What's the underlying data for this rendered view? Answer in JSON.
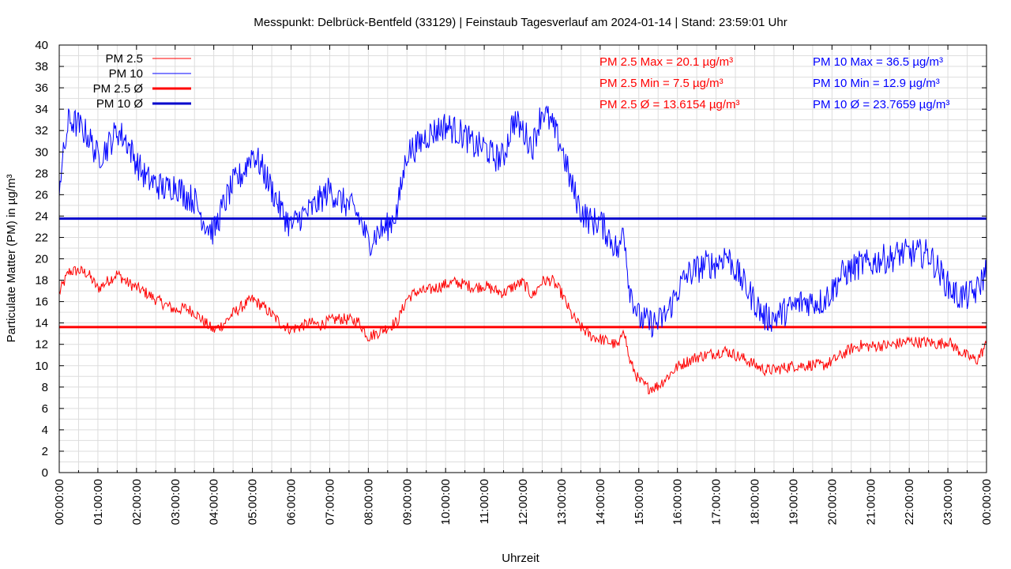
{
  "chart_data": {
    "type": "line",
    "title": "Messpunkt: Delbrück-Bentfeld (33129) | Feinstaub Tagesverlauf am 2024-01-14 | Stand: 23:59:01 Uhr",
    "xlabel": "Uhrzeit",
    "ylabel": "Particulate Matter (PM) in µg/m³",
    "ylim": [
      0,
      40
    ],
    "y_ticks": [
      "0",
      "2",
      "4",
      "6",
      "8",
      "10",
      "12",
      "14",
      "16",
      "18",
      "20",
      "22",
      "24",
      "26",
      "28",
      "30",
      "32",
      "34",
      "36",
      "38",
      "40"
    ],
    "x_ticks": [
      "00:00:00",
      "01:00:00",
      "02:00:00",
      "03:00:00",
      "04:00:00",
      "05:00:00",
      "06:00:00",
      "07:00:00",
      "08:00:00",
      "09:00:00",
      "10:00:00",
      "11:00:00",
      "12:00:00",
      "13:00:00",
      "14:00:00",
      "15:00:00",
      "16:00:00",
      "17:00:00",
      "18:00:00",
      "19:00:00",
      "20:00:00",
      "21:00:00",
      "22:00:00",
      "23:00:00",
      "00:00:00"
    ],
    "grid": true,
    "legend_position": "top-left",
    "series": [
      {
        "name": "PM 2.5",
        "color": "#ff0000",
        "x_hours": [
          0,
          0.25,
          0.5,
          0.75,
          1,
          1.25,
          1.5,
          1.75,
          2,
          2.25,
          2.5,
          2.75,
          3,
          3.25,
          3.5,
          3.75,
          4,
          4.25,
          4.5,
          4.75,
          5,
          5.25,
          5.5,
          5.75,
          6,
          6.25,
          6.5,
          6.75,
          7,
          7.25,
          7.5,
          7.75,
          8,
          8.25,
          8.5,
          8.75,
          9,
          9.25,
          9.5,
          9.75,
          10,
          10.25,
          10.5,
          10.75,
          11,
          11.25,
          11.5,
          11.75,
          12,
          12.25,
          12.5,
          12.75,
          13,
          13.25,
          13.5,
          13.75,
          14,
          14.25,
          14.5,
          14.6,
          14.75,
          15,
          15.25,
          15.5,
          15.75,
          16,
          16.25,
          16.5,
          16.75,
          17,
          17.25,
          17.5,
          17.75,
          18,
          18.25,
          18.5,
          18.75,
          19,
          19.25,
          19.5,
          19.75,
          20,
          20.25,
          20.5,
          20.75,
          21,
          21.25,
          21.5,
          21.75,
          22,
          22.25,
          22.5,
          22.75,
          23,
          23.25,
          23.5,
          23.75,
          24
        ],
        "values": [
          16.8,
          18.8,
          18.9,
          18.6,
          17.2,
          17.9,
          18.6,
          17.8,
          17.3,
          16.8,
          16.2,
          15.7,
          15.2,
          15.4,
          15.0,
          14.1,
          13.3,
          13.9,
          14.9,
          15.6,
          16.2,
          15.6,
          14.8,
          13.9,
          13.4,
          13.7,
          14.0,
          13.8,
          14.2,
          14.4,
          14.3,
          14.1,
          12.7,
          13.1,
          13.6,
          14.1,
          16.3,
          16.9,
          17.0,
          17.3,
          17.6,
          17.8,
          17.6,
          17.3,
          17.5,
          17.1,
          16.8,
          17.4,
          17.8,
          16.5,
          17.9,
          18.0,
          16.8,
          14.8,
          13.6,
          12.8,
          12.5,
          12.2,
          11.8,
          13.8,
          10.6,
          8.6,
          7.9,
          8.1,
          9.0,
          9.9,
          10.4,
          10.8,
          11.0,
          11.2,
          11.4,
          11.0,
          10.6,
          10.1,
          9.6,
          9.6,
          9.8,
          10.0,
          10.0,
          10.1,
          10.0,
          10.4,
          11.0,
          11.6,
          11.9,
          11.8,
          11.9,
          11.9,
          12.1,
          12.3,
          12.2,
          12.2,
          12.0,
          12.3,
          11.5,
          10.9,
          10.5,
          12.0
        ]
      },
      {
        "name": "PM 10",
        "color": "#0000ff",
        "x_hours": [
          0,
          0.25,
          0.5,
          0.75,
          1,
          1.25,
          1.5,
          1.75,
          2,
          2.25,
          2.5,
          2.75,
          3,
          3.25,
          3.5,
          3.75,
          4,
          4.25,
          4.5,
          4.75,
          5,
          5.25,
          5.5,
          5.75,
          6,
          6.25,
          6.5,
          6.75,
          7,
          7.25,
          7.5,
          7.75,
          8,
          8.25,
          8.5,
          8.75,
          9,
          9.25,
          9.5,
          9.75,
          10,
          10.25,
          10.5,
          10.75,
          11,
          11.25,
          11.5,
          11.75,
          12,
          12.25,
          12.5,
          12.75,
          13,
          13.25,
          13.5,
          13.75,
          14,
          14.25,
          14.5,
          14.6,
          14.75,
          15,
          15.25,
          15.5,
          15.75,
          16,
          16.25,
          16.5,
          16.75,
          17,
          17.25,
          17.5,
          17.75,
          18,
          18.25,
          18.5,
          18.75,
          19,
          19.25,
          19.5,
          19.75,
          20,
          20.25,
          20.5,
          20.75,
          21,
          21.25,
          21.5,
          21.75,
          22,
          22.25,
          22.5,
          22.75,
          23,
          23.25,
          23.5,
          23.75,
          24
        ],
        "values": [
          27.0,
          33.0,
          32.5,
          31.5,
          29.5,
          30.5,
          32.0,
          31.0,
          29.0,
          27.5,
          27.0,
          26.5,
          27.0,
          26.0,
          25.5,
          23.5,
          22.5,
          25.0,
          27.0,
          28.0,
          30.0,
          28.5,
          26.5,
          24.5,
          23.0,
          24.0,
          24.5,
          25.5,
          26.5,
          25.5,
          25.0,
          24.0,
          21.5,
          22.5,
          23.0,
          24.5,
          30.0,
          30.5,
          31.5,
          32.0,
          32.5,
          32.0,
          31.5,
          30.5,
          30.5,
          29.5,
          29.5,
          33.0,
          32.0,
          30.5,
          34.0,
          32.5,
          30.5,
          27.0,
          24.5,
          23.5,
          23.5,
          22.0,
          20.5,
          23.5,
          17.5,
          14.5,
          14.0,
          14.0,
          15.0,
          17.0,
          18.5,
          19.0,
          19.5,
          19.5,
          20.5,
          19.0,
          17.5,
          16.0,
          14.5,
          14.5,
          15.0,
          15.5,
          16.0,
          16.0,
          16.0,
          17.0,
          18.5,
          19.0,
          19.5,
          19.5,
          20.0,
          20.0,
          20.5,
          20.5,
          20.5,
          20.5,
          19.0,
          17.5,
          16.5,
          16.5,
          17.0,
          19.0
        ]
      }
    ],
    "averages": [
      {
        "name": "PM 2.5 Ø",
        "value": 13.6154,
        "color": "#ff0000"
      },
      {
        "name": "PM 10 Ø",
        "value": 23.7659,
        "color": "#0000cc"
      }
    ],
    "stats": {
      "pm25": [
        "PM 2.5 Max = 20.1 µg/m³",
        "PM 2.5 Min = 7.5 µg/m³",
        "PM 2.5 Ø = 13.6154 µg/m³"
      ],
      "pm10": [
        "PM 10 Max = 36.5 µg/m³",
        "PM 10 Min = 12.9 µg/m³",
        "PM 10 Ø = 23.7659 µg/m³"
      ]
    }
  }
}
